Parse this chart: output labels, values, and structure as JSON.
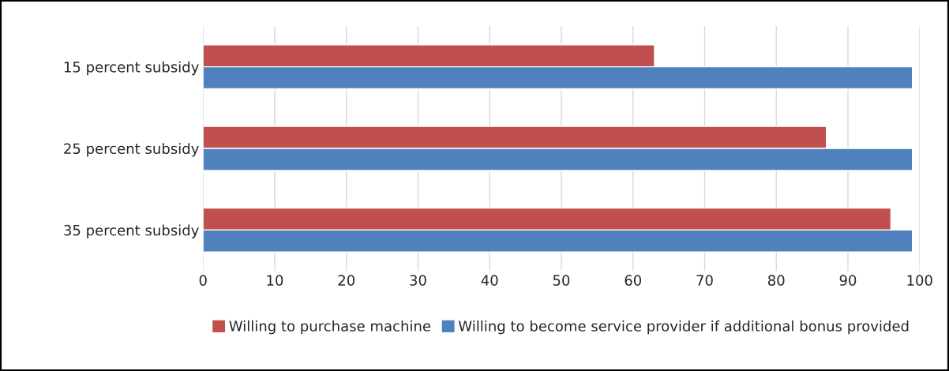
{
  "chart_data": {
    "type": "bar",
    "orientation": "horizontal",
    "categories": [
      "15 percent subsidy",
      "25 percent subsidy",
      "35 percent subsidy"
    ],
    "series": [
      {
        "name": "Willing to purchase machine",
        "color": "#c0504d",
        "values": [
          63,
          87,
          96
        ]
      },
      {
        "name": "Willing to become service provider if additional bonus provided",
        "color": "#4f81bd",
        "values": [
          99,
          99,
          99
        ]
      }
    ],
    "xlim": [
      0,
      100
    ],
    "xticks": [
      0,
      10,
      20,
      30,
      40,
      50,
      60,
      70,
      80,
      90,
      100
    ],
    "grid": "x",
    "legend": "bottom"
  }
}
